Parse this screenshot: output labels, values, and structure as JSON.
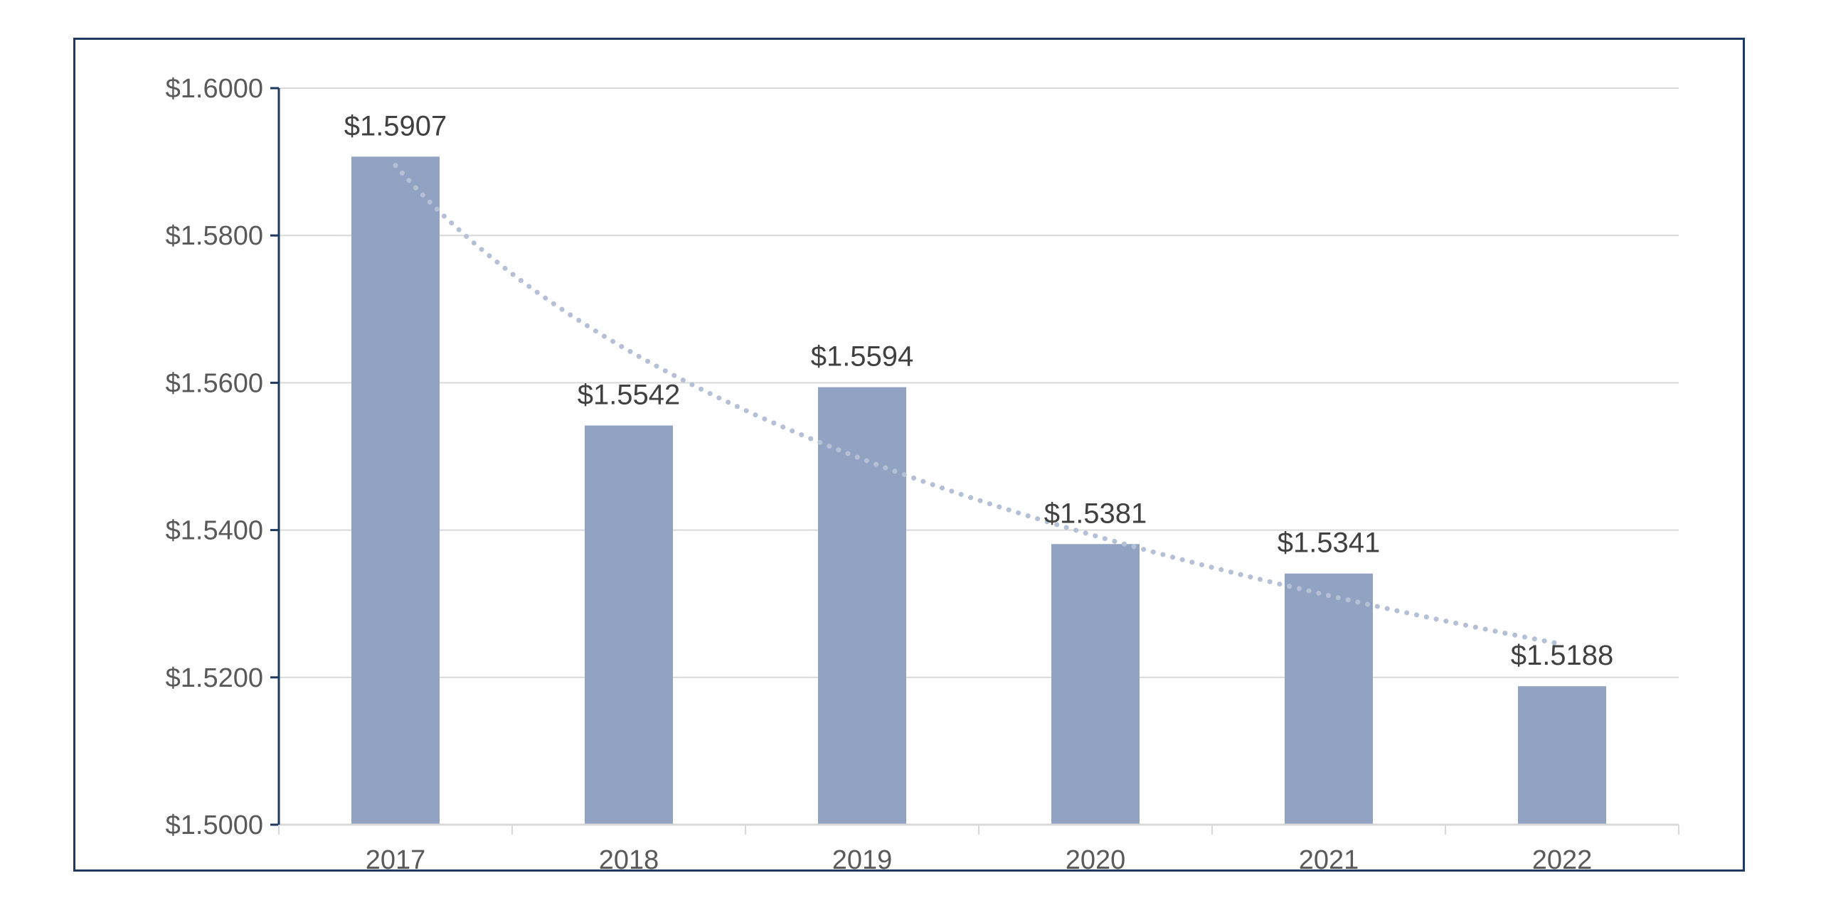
{
  "chart_data": {
    "type": "bar",
    "categories": [
      "2017",
      "2018",
      "2019",
      "2020",
      "2021",
      "2022"
    ],
    "values": [
      1.5907,
      1.5542,
      1.5594,
      1.5381,
      1.5341,
      1.5188
    ],
    "data_labels": [
      "$1.5907",
      "$1.5542",
      "$1.5594",
      "$1.5381",
      "$1.5341",
      "$1.5188"
    ],
    "y_ticks": [
      1.5,
      1.52,
      1.54,
      1.56,
      1.58,
      1.6
    ],
    "y_tick_labels": [
      "$1.5000",
      "$1.5200",
      "$1.5400",
      "$1.5600",
      "$1.5800",
      "$1.6000"
    ],
    "ylim": [
      1.5,
      1.6
    ],
    "title": "",
    "xlabel": "",
    "ylabel": "",
    "grid": true,
    "legend": false,
    "trendline": {
      "type": "logarithmic",
      "style": "dotted",
      "start_value": 1.5895,
      "end_value": 1.5245
    },
    "colors": {
      "bar": "#91A2C2",
      "trendline": "#B5C0D6",
      "gridline": "#D9D9D9",
      "axis": "#1F3A5F",
      "frame": "#1F3A5F"
    }
  }
}
